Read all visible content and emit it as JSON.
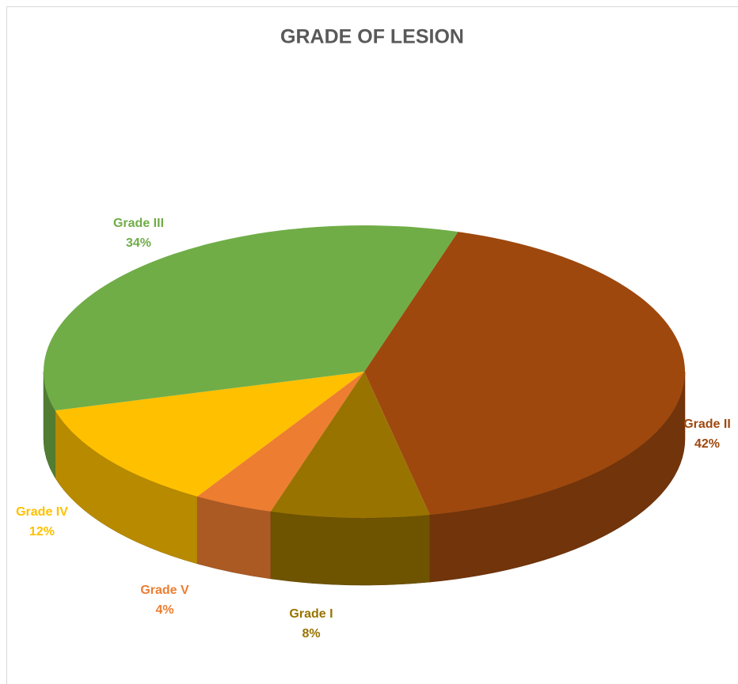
{
  "chart_data": {
    "type": "pie3d",
    "title": "GRADE OF LESION",
    "categories": [
      "Grade II",
      "Grade I",
      "Grade V",
      "Grade IV",
      "Grade III"
    ],
    "values": [
      42,
      8,
      4,
      12,
      34
    ],
    "value_labels": [
      "42%",
      "8%",
      "4%",
      "12%",
      "34%"
    ],
    "colors": [
      "#9e480e",
      "#997300",
      "#ed7d31",
      "#ffc000",
      "#70ad47"
    ]
  }
}
